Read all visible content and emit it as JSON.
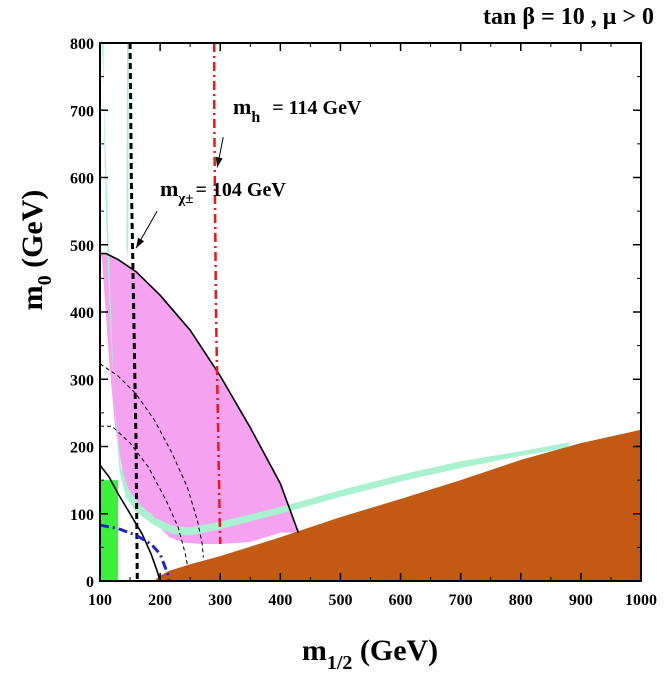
{
  "chart_data": {
    "type": "region-contour",
    "title": "tan β = 10 ,  μ > 0",
    "xlabel": {
      "main": "m",
      "sub": "1/2",
      "unit": " (GeV)"
    },
    "ylabel": {
      "main": "m",
      "sub": "0",
      "unit": " (GeV)"
    },
    "xlim": [
      100,
      1000
    ],
    "ylim": [
      0,
      800
    ],
    "xticks": [
      100,
      200,
      300,
      400,
      500,
      600,
      700,
      800,
      900,
      1000
    ],
    "yticks": [
      0,
      100,
      200,
      300,
      400,
      500,
      600,
      700,
      800
    ],
    "colors": {
      "pink": "#f5a3f0",
      "brown": "#c25a14",
      "mint": "#a8f2d0",
      "green": "#3ef03e",
      "red": "#e8181e",
      "blue": "#2222cc",
      "black": "#000000"
    },
    "regions": {
      "pink_gminus2": [
        [
          100,
          487
        ],
        [
          110,
          487
        ],
        [
          130,
          478
        ],
        [
          160,
          460
        ],
        [
          200,
          425
        ],
        [
          250,
          373
        ],
        [
          300,
          305
        ],
        [
          350,
          228
        ],
        [
          400,
          145
        ],
        [
          430,
          72
        ],
        [
          400,
          72
        ],
        [
          350,
          58
        ],
        [
          300,
          55
        ],
        [
          270,
          55
        ],
        [
          240,
          57
        ],
        [
          215,
          65
        ],
        [
          200,
          80
        ],
        [
          185,
          100
        ],
        [
          160,
          115
        ],
        [
          140,
          150
        ],
        [
          125,
          230
        ],
        [
          115,
          330
        ],
        [
          108,
          420
        ],
        [
          103,
          480
        ],
        [
          100,
          487
        ]
      ],
      "brown_charged_lsp": [
        [
          190,
          0
        ],
        [
          200,
          8
        ],
        [
          215,
          15
        ],
        [
          250,
          25
        ],
        [
          300,
          37
        ],
        [
          400,
          65
        ],
        [
          500,
          95
        ],
        [
          600,
          122
        ],
        [
          700,
          150
        ],
        [
          800,
          180
        ],
        [
          900,
          205
        ],
        [
          1000,
          225
        ],
        [
          1000,
          0
        ]
      ],
      "mint_relic_band_lower": [
        [
          100,
          800
        ],
        [
          103,
          800
        ],
        [
          106,
          730
        ],
        [
          110,
          620
        ],
        [
          115,
          480
        ],
        [
          120,
          360
        ],
        [
          125,
          250
        ],
        [
          133,
          160
        ],
        [
          143,
          125
        ],
        [
          160,
          103
        ],
        [
          190,
          83
        ],
        [
          220,
          70
        ],
        [
          250,
          68
        ],
        [
          300,
          77
        ],
        [
          400,
          100
        ],
        [
          500,
          125
        ],
        [
          600,
          148
        ],
        [
          700,
          168
        ],
        [
          800,
          186
        ],
        [
          880,
          198
        ],
        [
          880,
          206
        ],
        [
          800,
          193
        ],
        [
          700,
          178
        ],
        [
          600,
          158
        ],
        [
          500,
          135
        ],
        [
          400,
          110
        ],
        [
          300,
          88
        ],
        [
          250,
          80
        ],
        [
          220,
          82
        ],
        [
          190,
          95
        ],
        [
          165,
          115
        ],
        [
          148,
          135
        ],
        [
          135,
          170
        ],
        [
          125,
          255
        ],
        [
          118,
          370
        ],
        [
          112,
          490
        ],
        [
          108,
          620
        ],
        [
          106,
          730
        ],
        [
          106,
          800
        ]
      ],
      "mint_thin_strip": [
        [
          145,
          800
        ],
        [
          148,
          800
        ],
        [
          147,
          500
        ],
        [
          145,
          480
        ],
        [
          144,
          500
        ]
      ],
      "green_bsgamma": [
        [
          100,
          0
        ],
        [
          130,
          0
        ],
        [
          130,
          150
        ],
        [
          100,
          150
        ]
      ]
    },
    "lines": {
      "solid_gminus2_outer": [
        [
          100,
          487
        ],
        [
          110,
          487
        ],
        [
          130,
          478
        ],
        [
          160,
          460
        ],
        [
          200,
          425
        ],
        [
          250,
          373
        ],
        [
          300,
          305
        ],
        [
          350,
          228
        ],
        [
          400,
          145
        ],
        [
          430,
          72
        ]
      ],
      "solid_gminus2_inner": [
        [
          100,
          172
        ],
        [
          115,
          155
        ],
        [
          130,
          130
        ],
        [
          150,
          100
        ],
        [
          170,
          70
        ],
        [
          185,
          40
        ],
        [
          195,
          15
        ],
        [
          200,
          0
        ]
      ],
      "dashed_gminus2_outer": [
        [
          100,
          323
        ],
        [
          130,
          305
        ],
        [
          160,
          278
        ],
        [
          190,
          240
        ],
        [
          220,
          190
        ],
        [
          245,
          140
        ],
        [
          262,
          90
        ],
        [
          270,
          55
        ],
        [
          272,
          35
        ]
      ],
      "dashed_gminus2_inner": [
        [
          100,
          230
        ],
        [
          120,
          230
        ],
        [
          150,
          205
        ],
        [
          180,
          170
        ],
        [
          210,
          120
        ],
        [
          230,
          80
        ],
        [
          242,
          40
        ],
        [
          246,
          20
        ]
      ],
      "higgs_114": [
        [
          290,
          800
        ],
        [
          290,
          700
        ],
        [
          291,
          600
        ],
        [
          292,
          500
        ],
        [
          293,
          400
        ],
        [
          295,
          300
        ],
        [
          297,
          200
        ],
        [
          299,
          100
        ],
        [
          300,
          55
        ]
      ],
      "chargino_104": [
        [
          150,
          800
        ],
        [
          151,
          700
        ],
        [
          152,
          600
        ],
        [
          154,
          500
        ],
        [
          156,
          400
        ],
        [
          158,
          300
        ],
        [
          160,
          200
        ],
        [
          161,
          100
        ],
        [
          162,
          0
        ]
      ],
      "blue_dashdot": [
        [
          100,
          83
        ],
        [
          130,
          78
        ],
        [
          160,
          68
        ],
        [
          185,
          55
        ],
        [
          200,
          40
        ],
        [
          213,
          10
        ],
        [
          215,
          0
        ]
      ]
    },
    "annotations": {
      "higgs_label": {
        "text": "= 114 GeV",
        "main": "m",
        "sub": "h",
        "arrow_from": [
          305,
          660
        ],
        "arrow_to": [
          295,
          615
        ]
      },
      "chargino_label": {
        "text": "= 104 GeV",
        "main": "m",
        "sub": "χ±",
        "arrow_from": [
          195,
          550
        ],
        "arrow_to": [
          160,
          495
        ]
      }
    }
  }
}
